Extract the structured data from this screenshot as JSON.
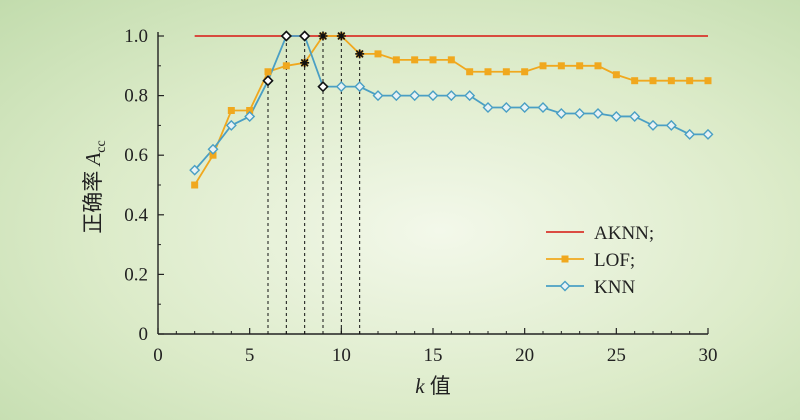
{
  "chart_data": {
    "type": "line",
    "title": "",
    "xlabel": {
      "var": "k",
      "text": " 值"
    },
    "ylabel": {
      "text": "正确率 ",
      "var": "A",
      "sub": "cc"
    },
    "xlim": [
      0,
      30
    ],
    "ylim": [
      0,
      1.0
    ],
    "xticks": [
      0,
      5,
      10,
      15,
      20,
      25,
      30
    ],
    "yticks": [
      0,
      0.2,
      0.4,
      0.6,
      0.8,
      1.0
    ],
    "ytick_labels": [
      "0",
      "0.2",
      "0.4",
      "0.6",
      "0.8",
      "1.0"
    ],
    "grid": false,
    "legend_position": "right",
    "colors": {
      "AKNN": "#d9342b",
      "LOF": "#f0a81e",
      "KNN": "#4a9fc4"
    },
    "series": [
      {
        "name": "AKNN;",
        "key": "AKNN",
        "marker": "none",
        "x": [
          2,
          30
        ],
        "y": [
          1.0,
          1.0
        ]
      },
      {
        "name": "LOF;",
        "key": "LOF",
        "marker": "square",
        "x": [
          2,
          3,
          4,
          5,
          6,
          7,
          8,
          9,
          10,
          11,
          12,
          13,
          14,
          15,
          16,
          17,
          18,
          19,
          20,
          21,
          22,
          23,
          24,
          25,
          26,
          27,
          28,
          29,
          30
        ],
        "y": [
          0.5,
          0.6,
          0.75,
          0.75,
          0.88,
          0.9,
          0.91,
          1.0,
          1.0,
          0.94,
          0.94,
          0.92,
          0.92,
          0.92,
          0.92,
          0.88,
          0.88,
          0.88,
          0.88,
          0.9,
          0.9,
          0.9,
          0.9,
          0.87,
          0.85,
          0.85,
          0.85,
          0.85,
          0.85
        ]
      },
      {
        "name": "KNN",
        "key": "KNN",
        "marker": "diamond",
        "x": [
          2,
          3,
          4,
          5,
          6,
          7,
          8,
          9,
          10,
          11,
          12,
          13,
          14,
          15,
          16,
          17,
          18,
          19,
          20,
          21,
          22,
          23,
          24,
          25,
          26,
          27,
          28,
          29,
          30
        ],
        "y": [
          0.55,
          0.62,
          0.7,
          0.73,
          0.85,
          1.0,
          1.0,
          0.83,
          0.83,
          0.83,
          0.8,
          0.8,
          0.8,
          0.8,
          0.8,
          0.8,
          0.76,
          0.76,
          0.76,
          0.76,
          0.74,
          0.74,
          0.74,
          0.73,
          0.73,
          0.7,
          0.7,
          0.67,
          0.67
        ]
      }
    ],
    "annotations": {
      "dashed_vertical_lines": [
        {
          "x": 6,
          "y": 0.85
        },
        {
          "x": 7,
          "y": 1.0
        },
        {
          "x": 8,
          "y": 1.0
        },
        {
          "x": 9,
          "y": 1.0
        },
        {
          "x": 10,
          "y": 1.0
        },
        {
          "x": 11,
          "y": 0.94
        }
      ],
      "highlight_points": [
        {
          "series": "KNN",
          "x": 6,
          "y": 0.85,
          "marker": "diamond"
        },
        {
          "series": "KNN",
          "x": 7,
          "y": 1.0,
          "marker": "diamond"
        },
        {
          "series": "KNN",
          "x": 8,
          "y": 1.0,
          "marker": "diamond"
        },
        {
          "series": "KNN",
          "x": 9,
          "y": 0.83,
          "marker": "diamond"
        },
        {
          "series": "LOF",
          "x": 8,
          "y": 0.91,
          "marker": "star"
        },
        {
          "series": "LOF",
          "x": 9,
          "y": 1.0,
          "marker": "star"
        },
        {
          "series": "LOF",
          "x": 10,
          "y": 1.0,
          "marker": "star"
        },
        {
          "series": "LOF",
          "x": 11,
          "y": 0.94,
          "marker": "star"
        }
      ]
    }
  }
}
